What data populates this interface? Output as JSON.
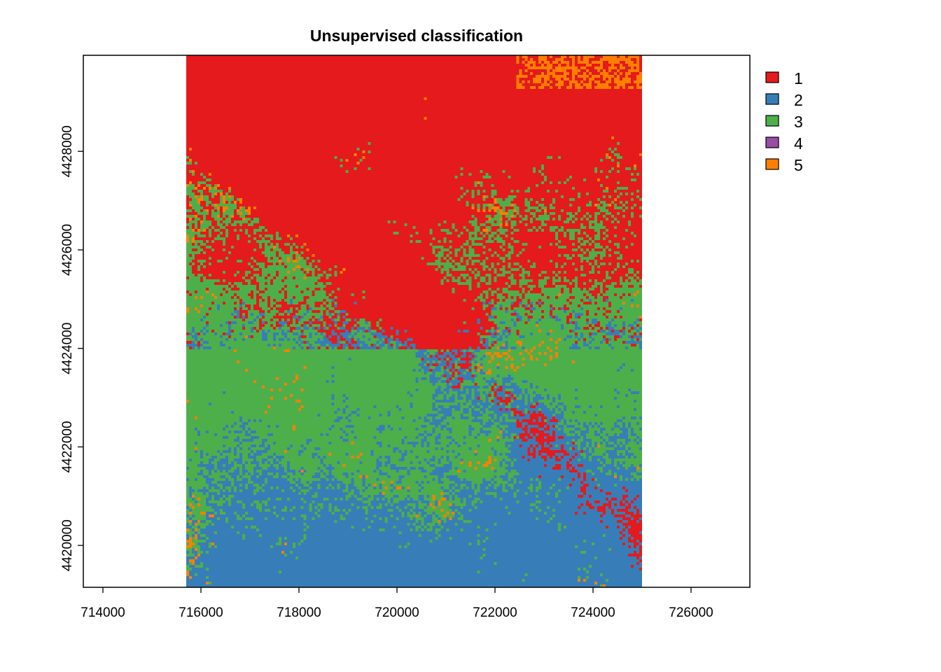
{
  "chart_data": {
    "type": "heatmap",
    "title": "Unsupervised classification",
    "xlabel": "",
    "ylabel": "",
    "xlim": [
      713600,
      727200
    ],
    "ylim": [
      4419150,
      4429950
    ],
    "raster_extent": {
      "xmin": 715700,
      "xmax": 725000,
      "ymin": 4419150,
      "ymax": 4429950
    },
    "x_ticks": [
      714000,
      716000,
      718000,
      720000,
      722000,
      724000,
      726000
    ],
    "y_ticks": [
      4420000,
      4422000,
      4424000,
      4426000,
      4428000
    ],
    "x_tick_labels": [
      "714000",
      "716000",
      "718000",
      "720000",
      "722000",
      "724000",
      "726000"
    ],
    "y_tick_labels": [
      "4420000",
      "4422000",
      "4424000",
      "4426000",
      "4428000"
    ],
    "legend_position": "top-right",
    "classes": [
      {
        "value": 1,
        "label": "1",
        "color": "#E41A1C"
      },
      {
        "value": 2,
        "label": "2",
        "color": "#377EB8"
      },
      {
        "value": 3,
        "label": "3",
        "color": "#4DAF4A"
      },
      {
        "value": 4,
        "label": "4",
        "color": "#984EA3"
      },
      {
        "value": 5,
        "label": "5",
        "color": "#FF7F00"
      }
    ]
  }
}
